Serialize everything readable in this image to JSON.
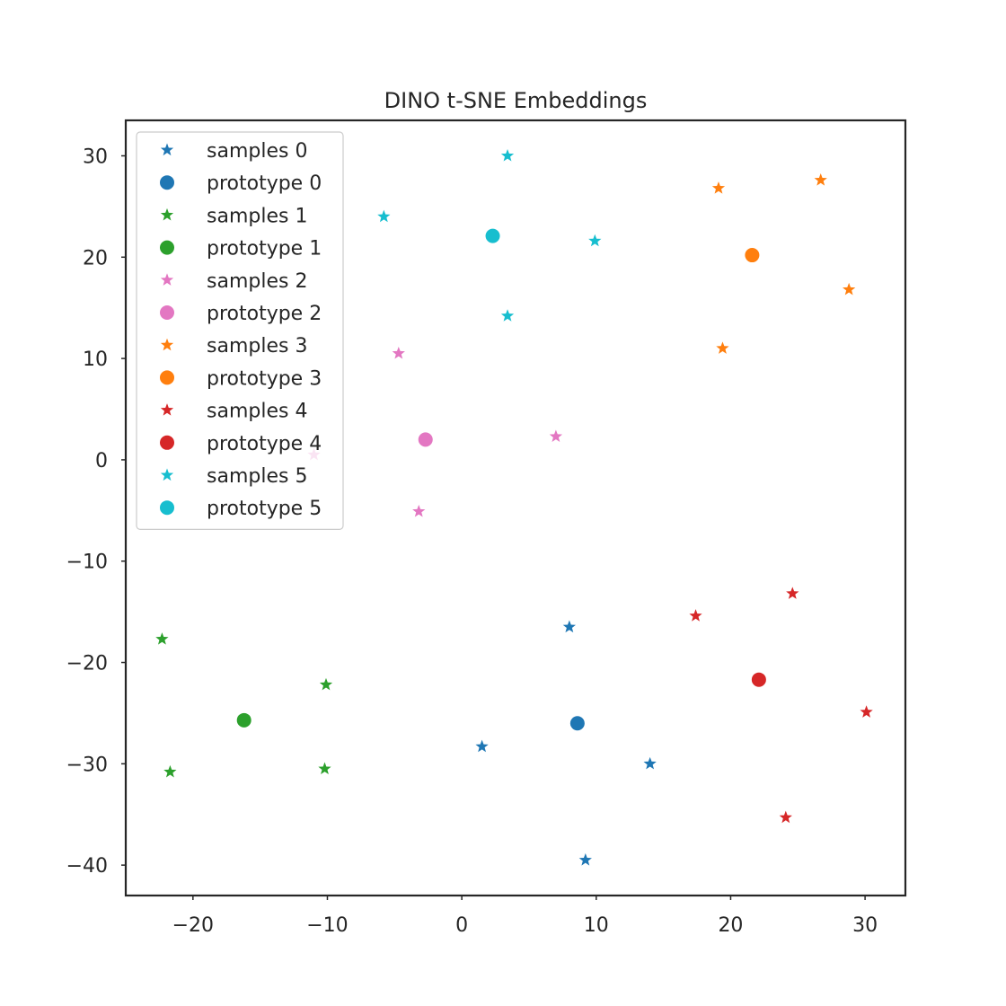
{
  "chart_data": {
    "type": "scatter",
    "title": "DINO t-SNE Embeddings",
    "xlabel": "",
    "ylabel": "",
    "xlim": [
      -25,
      33
    ],
    "ylim": [
      -43,
      33.5
    ],
    "x_ticks": [
      -20,
      -10,
      0,
      10,
      20,
      30
    ],
    "y_ticks": [
      30,
      20,
      10,
      0,
      -10,
      -20,
      -30,
      -40
    ],
    "x_tick_labels": [
      "−20",
      "−10",
      "0",
      "10",
      "20",
      "30"
    ],
    "y_tick_labels": [
      "30",
      "20",
      "10",
      "0",
      "−10",
      "−20",
      "−30",
      "−40"
    ],
    "grid": false,
    "legend_position": "top-left",
    "series": [
      {
        "name": "samples 0",
        "marker": "star",
        "color": "#1f77b4",
        "points": [
          [
            8,
            -16.5
          ],
          [
            1.5,
            -28.3
          ],
          [
            14,
            -30
          ],
          [
            9.2,
            -39.5
          ]
        ]
      },
      {
        "name": "prototype 0",
        "marker": "circle",
        "color": "#1f77b4",
        "points": [
          [
            8.6,
            -26
          ]
        ]
      },
      {
        "name": "samples 1",
        "marker": "star",
        "color": "#2ca02c",
        "points": [
          [
            -22.3,
            -17.7
          ],
          [
            -10.1,
            -22.2
          ],
          [
            -10.2,
            -30.5
          ],
          [
            -21.7,
            -30.8
          ]
        ]
      },
      {
        "name": "prototype 1",
        "marker": "circle",
        "color": "#2ca02c",
        "points": [
          [
            -16.2,
            -25.7
          ]
        ]
      },
      {
        "name": "samples 2",
        "marker": "star",
        "color": "#e377c2",
        "points": [
          [
            -4.7,
            10.5
          ],
          [
            7,
            2.3
          ],
          [
            -11,
            0.5
          ],
          [
            -3.2,
            -5.1
          ]
        ]
      },
      {
        "name": "prototype 2",
        "marker": "circle",
        "color": "#e377c2",
        "points": [
          [
            -2.7,
            2
          ]
        ]
      },
      {
        "name": "samples 3",
        "marker": "star",
        "color": "#ff7f0e",
        "points": [
          [
            19.1,
            26.8
          ],
          [
            26.7,
            27.6
          ],
          [
            28.8,
            16.8
          ],
          [
            19.4,
            11
          ]
        ]
      },
      {
        "name": "prototype 3",
        "marker": "circle",
        "color": "#ff7f0e",
        "points": [
          [
            21.6,
            20.2
          ]
        ]
      },
      {
        "name": "samples 4",
        "marker": "star",
        "color": "#d62728",
        "points": [
          [
            24.6,
            -13.2
          ],
          [
            17.4,
            -15.4
          ],
          [
            30.1,
            -24.9
          ],
          [
            24.1,
            -35.3
          ]
        ]
      },
      {
        "name": "prototype 4",
        "marker": "circle",
        "color": "#d62728",
        "points": [
          [
            22.1,
            -21.7
          ]
        ]
      },
      {
        "name": "samples 5",
        "marker": "star",
        "color": "#17becf",
        "points": [
          [
            3.4,
            30
          ],
          [
            -5.8,
            24
          ],
          [
            9.9,
            21.6
          ],
          [
            3.4,
            14.2
          ]
        ]
      },
      {
        "name": "prototype 5",
        "marker": "circle",
        "color": "#17becf",
        "points": [
          [
            2.3,
            22.1
          ]
        ]
      }
    ]
  }
}
